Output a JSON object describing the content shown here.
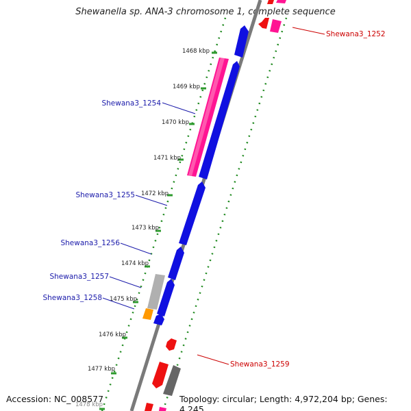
{
  "title": "Shewanella sp. ANA-3 chromosome 1, complete sequence",
  "ticks": [
    {
      "label": "1468 kbp"
    },
    {
      "label": "1469 kbp"
    },
    {
      "label": "1470 kbp"
    },
    {
      "label": "1471 kbp"
    },
    {
      "label": "1472 kbp"
    },
    {
      "label": "1473 kbp"
    },
    {
      "label": "1474 kbp"
    },
    {
      "label": "1475 kbp"
    },
    {
      "label": "1476 kbp"
    },
    {
      "label": "1477 kbp"
    },
    {
      "label": "1478 kbp"
    }
  ],
  "gene_labels": {
    "left": [
      "Shewana3_1254",
      "Shewana3_1255",
      "Shewana3_1256",
      "Shewana3_1257",
      "Shewana3_1258"
    ],
    "right": [
      "Shewana3_1252",
      "Shewana3_1259"
    ]
  },
  "colors": {
    "forward_gene": "#1010e0",
    "rna_gene": "#ff1493",
    "reverse_gene": "#ee1111",
    "pseudo_gene": "#b0b0b0",
    "orange_gene": "#ff9900",
    "left_label": "#1a1aaa",
    "right_label": "#cc0000",
    "backbone": "#7a7a7a",
    "guide": "#228b22"
  },
  "footer": {
    "accession": "Accession: NC_008577",
    "summary": "Topology: circular; Length: 4,972,204 bp; Genes: 4,245"
  }
}
